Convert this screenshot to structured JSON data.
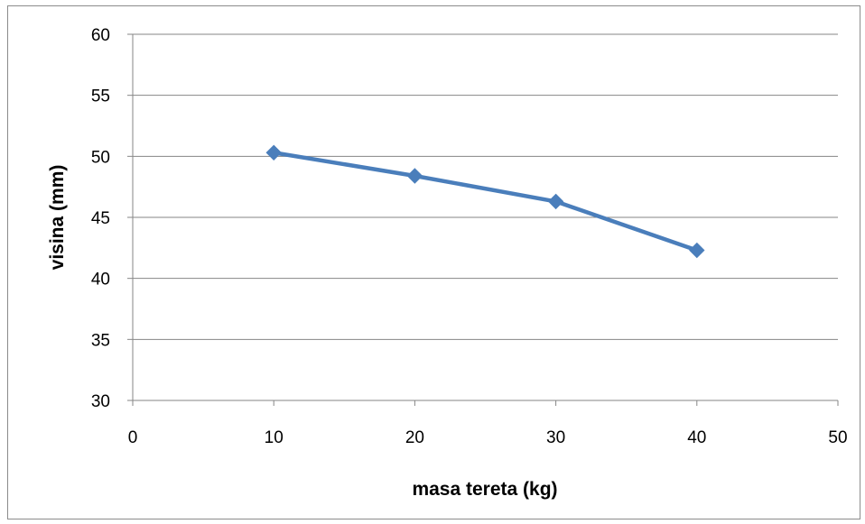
{
  "chart_data": {
    "type": "line",
    "title": "",
    "xlabel": "masa tereta (kg)",
    "ylabel": "visina (mm)",
    "xlim": [
      0,
      50
    ],
    "ylim": [
      30,
      60
    ],
    "x_ticks": [
      0,
      10,
      20,
      30,
      40,
      50
    ],
    "y_ticks": [
      30,
      35,
      40,
      45,
      50,
      55,
      60
    ],
    "grid": "horizontal",
    "legend": "none",
    "series": [
      {
        "x": [
          10,
          20,
          30,
          40
        ],
        "y": [
          50.3,
          48.4,
          46.3,
          42.3
        ],
        "color": "#4a7ebb",
        "marker": "diamond"
      }
    ]
  }
}
